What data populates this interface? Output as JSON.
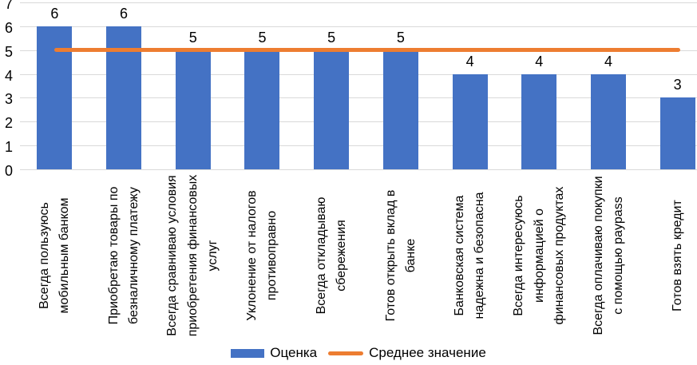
{
  "chart_data": {
    "type": "bar",
    "title": "",
    "xlabel": "",
    "ylabel": "",
    "ylim": [
      0,
      7
    ],
    "yticks": [
      0,
      1,
      2,
      3,
      4,
      5,
      6,
      7
    ],
    "grid": "horizontal",
    "legend_position": "bottom",
    "categories": [
      "Всегда пользуюсь мобильным банком",
      "Приобретаю товары по безналичному платежу",
      "Всегда сравниваю условия приобретения финансовых услуг",
      "Уклонение от налогов противоправно",
      "Всегда откладываю сбережения",
      "Готов открыть вклад в банке",
      "Банковская система надежна и безопасна",
      "Всегда интересуюсь информацией о финансовых продуктах",
      "Всегда оплачиваю покупки с помощью paypass",
      "Готов взять кредит"
    ],
    "series": [
      {
        "name": "Оценка",
        "type": "bar",
        "values": [
          6,
          6,
          5,
          5,
          5,
          5,
          4,
          4,
          4,
          3
        ]
      },
      {
        "name": "Среднее значение",
        "type": "line",
        "value": 5
      }
    ],
    "data_labels": [
      6,
      6,
      5,
      5,
      5,
      5,
      4,
      4,
      4,
      3
    ],
    "colors": {
      "bar": "#4472C4",
      "average_line": "#ED7D31",
      "gridline": "#D9D9D9",
      "text": "#000000"
    }
  },
  "legend": {
    "items": [
      {
        "label": "Оценка",
        "swatch": "bar"
      },
      {
        "label": "Среднее значение",
        "swatch": "line"
      }
    ]
  }
}
